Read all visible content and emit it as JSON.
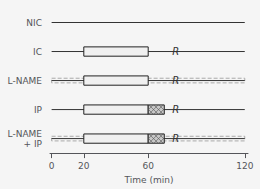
{
  "chart_data": {
    "type": "bar",
    "orientation": "horizontal",
    "categories": [
      "NIC",
      "IC",
      "L-NAME",
      "IP",
      "L-NAME\n+ IP"
    ],
    "series": [
      {
        "type": "range",
        "line_style": "dashed",
        "color": "#aaaaaa",
        "values": [
          null,
          null,
          [
            0,
            120
          ],
          null,
          [
            0,
            120
          ]
        ]
      },
      {
        "type": "line",
        "color": "#333333",
        "values": [
          [
            0,
            120
          ],
          [
            0,
            120
          ],
          [
            0,
            120
          ],
          [
            0,
            120
          ],
          [
            0,
            120
          ]
        ]
      },
      {
        "type": "range",
        "color": "#f0f0f0",
        "values": [
          null,
          [
            20,
            60
          ],
          [
            20,
            60
          ],
          [
            20,
            60
          ],
          [
            20,
            60
          ]
        ]
      },
      {
        "type": "range",
        "line_style": "crosshatch",
        "color": "#c8c8c8",
        "values": [
          null,
          null,
          null,
          [
            60,
            70
          ],
          [
            60,
            70
          ]
        ]
      }
    ],
    "annotations": [
      {
        "text": "R",
        "x": 75,
        "y": "IC",
        "color": "#333333"
      },
      {
        "text": "R",
        "x": 75,
        "y": "L-NAME",
        "color": "#333333"
      },
      {
        "text": "R",
        "x": 75,
        "y": "IP",
        "color": "#333333"
      },
      {
        "text": "R",
        "x": 75,
        "y": "L-NAME\n+ IP",
        "color": "#333333"
      }
    ],
    "xlabel": "Time (min)",
    "xlim": [
      -1,
      122
    ],
    "xticks": [
      0,
      20,
      60,
      120
    ],
    "grid": false
  }
}
